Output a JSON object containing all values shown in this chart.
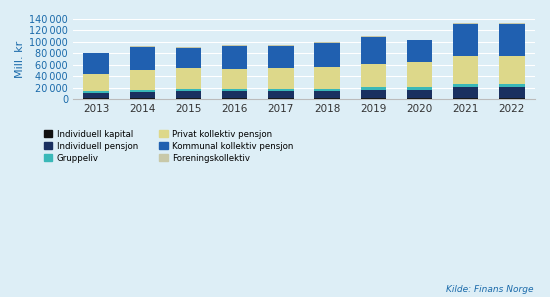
{
  "years": [
    "2013",
    "2014",
    "2015",
    "2016",
    "2017",
    "2018",
    "2019",
    "2020",
    "2021",
    "2022"
  ],
  "series": {
    "Individuell kapital": [
      2000,
      2000,
      2000,
      2000,
      2000,
      2000,
      2000,
      2000,
      2500,
      2500
    ],
    "Individuell pensjon": [
      10000,
      11000,
      12000,
      12000,
      12000,
      13000,
      15000,
      15000,
      19000,
      19000
    ],
    "Gruppeliv": [
      2500,
      3500,
      3500,
      3500,
      3500,
      4000,
      4500,
      5000,
      6000,
      6000
    ],
    "Privat kollektiv pensjon": [
      30000,
      34000,
      37000,
      35000,
      37000,
      38000,
      41000,
      43000,
      48000,
      48000
    ],
    "Kommunal kollektiv pensjon": [
      35500,
      41500,
      35500,
      40500,
      38500,
      42000,
      46500,
      38000,
      55500,
      55500
    ],
    "Foreningskollektiv": [
      1000,
      1000,
      1000,
      1000,
      1000,
      1000,
      1000,
      1000,
      1500,
      1500
    ]
  },
  "colors": {
    "Individuell kapital": "#111111",
    "Individuell pensjon": "#1a3060",
    "Gruppeliv": "#3ab8b8",
    "Privat kollektiv pensjon": "#ddd88a",
    "Kommunal kollektiv pensjon": "#2060b0",
    "Foreningskollektiv": "#c8c8a8"
  },
  "ylabel": "Mill. kr",
  "ylim": [
    0,
    140000
  ],
  "yticks": [
    0,
    20000,
    40000,
    60000,
    80000,
    100000,
    120000,
    140000
  ],
  "background_color": "#ddeef6",
  "plot_bg_color": "#ddeef6",
  "source_text": "Kilde: Finans Norge",
  "legend_order": [
    "Individuell kapital",
    "Individuell pensjon",
    "Gruppeliv",
    "Privat kollektiv pensjon",
    "Kommunal kollektiv pensjon",
    "Foreningskollektiv"
  ]
}
